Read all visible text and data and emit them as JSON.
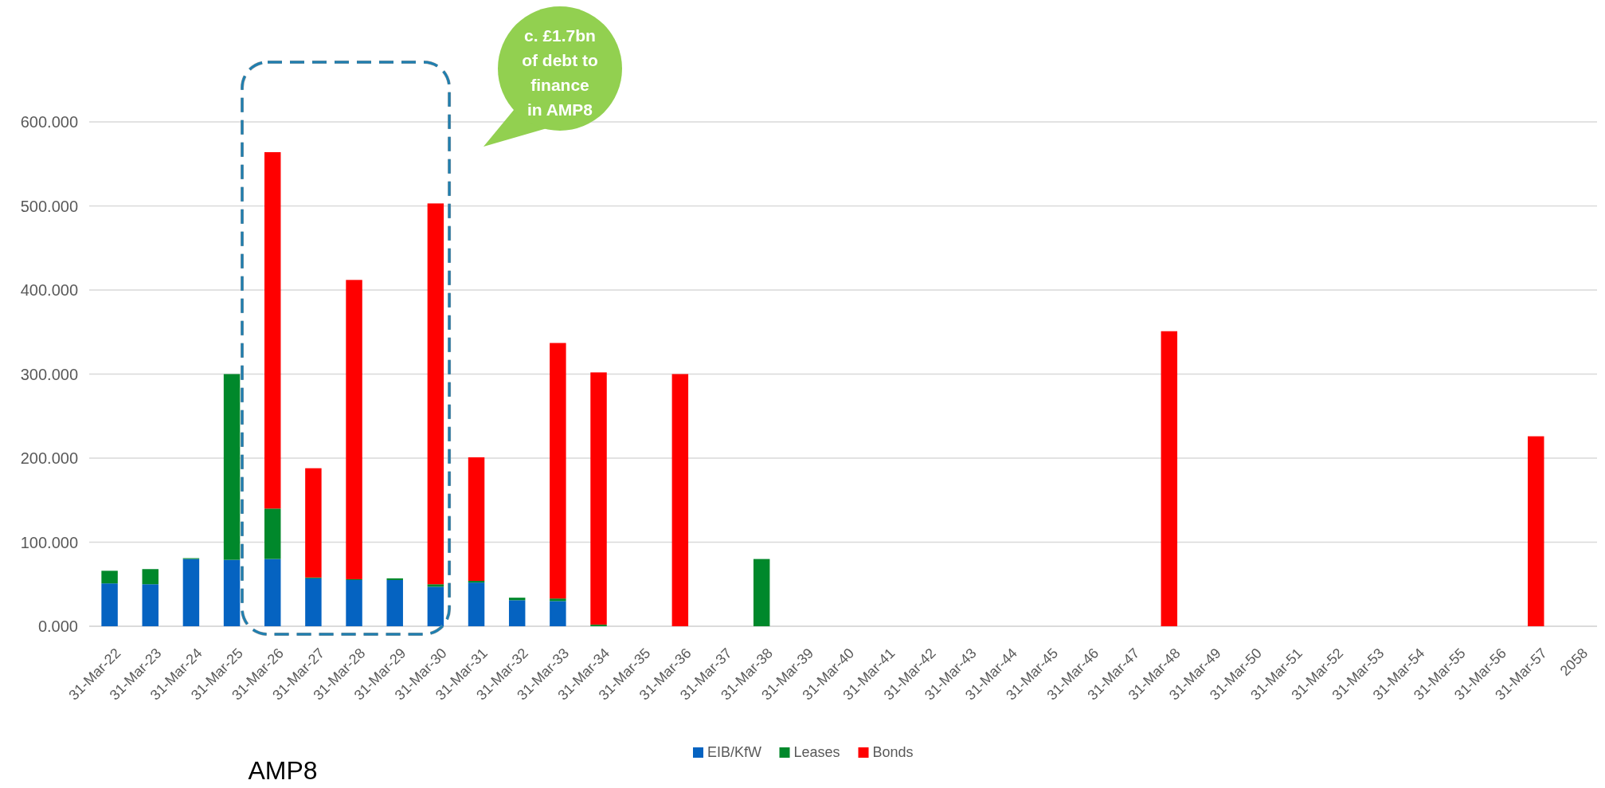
{
  "chart_data": {
    "type": "bar",
    "stacked": true,
    "categories": [
      "31-Mar-22",
      "31-Mar-23",
      "31-Mar-24",
      "31-Mar-25",
      "31-Mar-26",
      "31-Mar-27",
      "31-Mar-28",
      "31-Mar-29",
      "31-Mar-30",
      "31-Mar-31",
      "31-Mar-32",
      "31-Mar-33",
      "31-Mar-34",
      "31-Mar-35",
      "31-Mar-36",
      "31-Mar-37",
      "31-Mar-38",
      "31-Mar-39",
      "31-Mar-40",
      "31-Mar-41",
      "31-Mar-42",
      "31-Mar-43",
      "31-Mar-44",
      "31-Mar-45",
      "31-Mar-46",
      "31-Mar-47",
      "31-Mar-48",
      "31-Mar-49",
      "31-Mar-50",
      "31-Mar-51",
      "31-Mar-52",
      "31-Mar-53",
      "31-Mar-54",
      "31-Mar-55",
      "31-Mar-56",
      "31-Mar-57",
      "2058"
    ],
    "series": [
      {
        "name": "EIB/KfW",
        "color": "#0563c1",
        "values": [
          51,
          50,
          80,
          79,
          80,
          57,
          55,
          55,
          47,
          52,
          31,
          30,
          0,
          0,
          0,
          0,
          0,
          0,
          0,
          0,
          0,
          0,
          0,
          0,
          0,
          0,
          0,
          0,
          0,
          0,
          0,
          0,
          0,
          0,
          0,
          0,
          0
        ]
      },
      {
        "name": "Leases",
        "color": "#00882b",
        "values": [
          15,
          18,
          1,
          221,
          60,
          1,
          1,
          2,
          3,
          2,
          3,
          3,
          2,
          0,
          0,
          0,
          80,
          0,
          0,
          0,
          0,
          0,
          0,
          0,
          0,
          0,
          0,
          0,
          0,
          0,
          0,
          0,
          0,
          0,
          0,
          0,
          0
        ]
      },
      {
        "name": "Bonds",
        "color": "#ff0000",
        "values": [
          0,
          0,
          0,
          0,
          424,
          130,
          356,
          0,
          453,
          147,
          0,
          304,
          300,
          0,
          300,
          0,
          0,
          0,
          0,
          0,
          0,
          0,
          0,
          0,
          0,
          0,
          351,
          0,
          0,
          0,
          0,
          0,
          0,
          0,
          0,
          226,
          0
        ]
      }
    ],
    "ylim": [
      0,
      600
    ],
    "yticks": [
      {
        "value": 0,
        "label": "0.000"
      },
      {
        "value": 100,
        "label": "100.000"
      },
      {
        "value": 200,
        "label": "200.000"
      },
      {
        "value": 300,
        "label": "300.000"
      },
      {
        "value": 400,
        "label": "400.000"
      },
      {
        "value": 500,
        "label": "500.000"
      },
      {
        "value": 600,
        "label": "600.000"
      }
    ],
    "grid": "y",
    "legend": "bottom",
    "annotations": [
      "c. £1.7bn\nof debt to\nfinance\nin AMP8",
      "AMP8"
    ]
  }
}
